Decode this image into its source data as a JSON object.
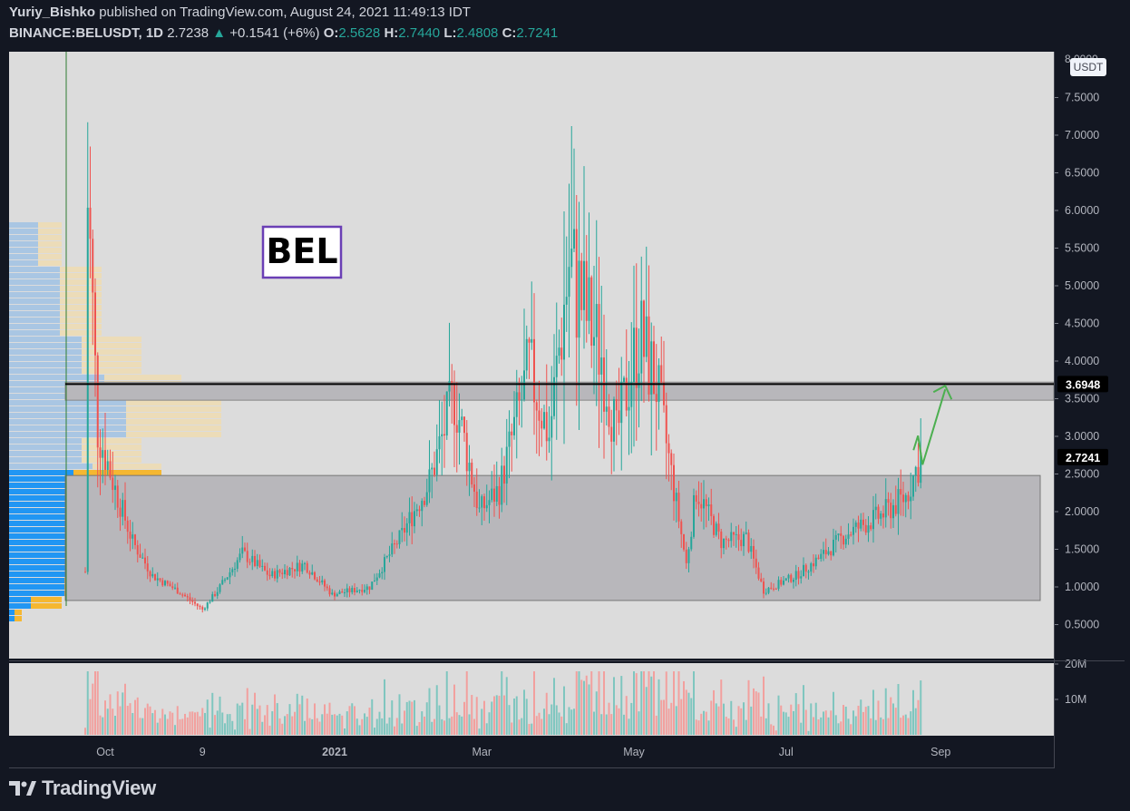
{
  "header": {
    "author": "Yuriy_Bishko",
    "published_text": "published on TradingView.com, August 24, 2021 11:49:13 IDT",
    "symbol": "BINANCE:BELUSDT, 1D",
    "last": "2.7238",
    "change_arrow": "▲",
    "change": "+0.1541 (+6%)",
    "o_label": "O:",
    "o_value": "2.5628",
    "h_label": "H:",
    "h_value": "2.7440",
    "l_label": "L:",
    "l_value": "2.4808",
    "c_label": "C:",
    "c_value": "2.7241"
  },
  "annotation": {
    "label": "BEL",
    "color": "#6a3fb5"
  },
  "price_axis": {
    "currency": "USDT",
    "top_partial_label": "8.0000",
    "ticks": [
      "7.5000",
      "7.0000",
      "6.5000",
      "6.0000",
      "5.5000",
      "5.0000",
      "4.5000",
      "4.0000",
      "3.5000",
      "3.0000",
      "2.5000",
      "2.0000",
      "1.5000",
      "1.0000",
      "0.5000"
    ],
    "badge_resistance": "3.6948",
    "badge_last": "2.7241"
  },
  "volume_axis": {
    "ticks": [
      "20M",
      "10M"
    ]
  },
  "time_axis": {
    "ticks": [
      "Oct",
      "9",
      "2021",
      "Mar",
      "May",
      "Jul",
      "Sep"
    ]
  },
  "colors": {
    "up": "#26a69a",
    "down": "#ef5350",
    "zone": "#b8b7bb",
    "chart_bg": "#dcdcdc",
    "arrow": "#4caf50",
    "vp_blue": "#2196f3",
    "vp_yellow": "#f5b731"
  },
  "brand": {
    "name": "TradingView"
  },
  "chart_data": {
    "type": "candlestick",
    "symbol": "BINANCE:BELUSDT",
    "interval": "1D",
    "ylim": [
      0.3,
      8.05
    ],
    "resistance_level": 3.6948,
    "resistance_zone": [
      3.48,
      3.72
    ],
    "support_zone": [
      0.82,
      2.48
    ],
    "projection_arrow": {
      "from": 2.72,
      "to": 3.66
    },
    "price_path": [
      {
        "date": "2020-09-23",
        "price": 1.2
      },
      {
        "date": "2020-09-24",
        "price": 6.2
      },
      {
        "date": "2020-09-28",
        "price": 3.1
      },
      {
        "date": "2020-10-05",
        "price": 2.3
      },
      {
        "date": "2020-10-12",
        "price": 1.6
      },
      {
        "date": "2020-10-20",
        "price": 1.15
      },
      {
        "date": "2020-10-30",
        "price": 0.95
      },
      {
        "date": "2020-11-09",
        "price": 0.7
      },
      {
        "date": "2020-11-15",
        "price": 0.95
      },
      {
        "date": "2020-11-25",
        "price": 1.45
      },
      {
        "date": "2020-12-06",
        "price": 1.15
      },
      {
        "date": "2020-12-20",
        "price": 1.3
      },
      {
        "date": "2020-12-31",
        "price": 0.9
      },
      {
        "date": "2021-01-15",
        "price": 1.0
      },
      {
        "date": "2021-01-28",
        "price": 1.7
      },
      {
        "date": "2021-02-08",
        "price": 2.4
      },
      {
        "date": "2021-02-18",
        "price": 3.55
      },
      {
        "date": "2021-02-28",
        "price": 2.0
      },
      {
        "date": "2021-03-08",
        "price": 2.3
      },
      {
        "date": "2021-03-20",
        "price": 3.9
      },
      {
        "date": "2021-03-28",
        "price": 3.0
      },
      {
        "date": "2021-04-05",
        "price": 5.3
      },
      {
        "date": "2021-04-12",
        "price": 4.6
      },
      {
        "date": "2021-04-18",
        "price": 4.1
      },
      {
        "date": "2021-04-24",
        "price": 3.0
      },
      {
        "date": "2021-05-03",
        "price": 4.35
      },
      {
        "date": "2021-05-10",
        "price": 3.7
      },
      {
        "date": "2021-05-18",
        "price": 2.1
      },
      {
        "date": "2021-05-22",
        "price": 1.3
      },
      {
        "date": "2021-05-26",
        "price": 2.3
      },
      {
        "date": "2021-06-05",
        "price": 1.6
      },
      {
        "date": "2021-06-15",
        "price": 1.65
      },
      {
        "date": "2021-06-22",
        "price": 0.95
      },
      {
        "date": "2021-07-05",
        "price": 1.15
      },
      {
        "date": "2021-07-15",
        "price": 1.4
      },
      {
        "date": "2021-07-25",
        "price": 1.7
      },
      {
        "date": "2021-08-08",
        "price": 1.95
      },
      {
        "date": "2021-08-18",
        "price": 2.2
      },
      {
        "date": "2021-08-24",
        "price": 2.72
      }
    ]
  }
}
